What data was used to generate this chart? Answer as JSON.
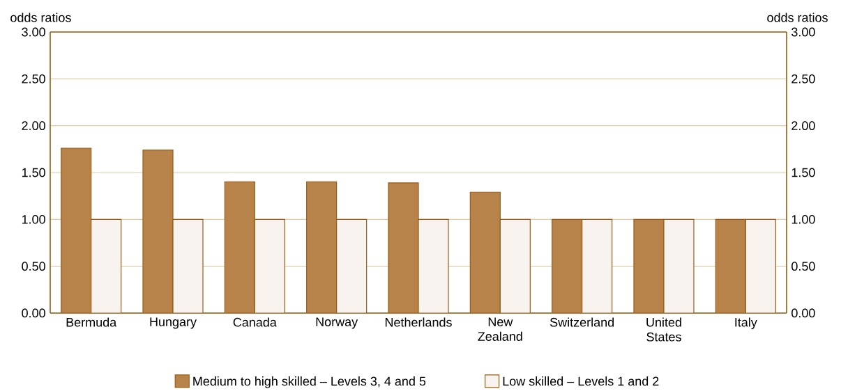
{
  "chart_data": {
    "type": "bar",
    "categories": [
      "Bermuda",
      "Hungary",
      "Canada",
      "Norway",
      "Netherlands",
      "New Zealand",
      "Switzerland",
      "United States",
      "Italy"
    ],
    "series": [
      {
        "name": "Medium to high skilled – Levels 3, 4 and 5",
        "color": "#b8834a",
        "values": [
          1.76,
          1.74,
          1.4,
          1.4,
          1.39,
          1.29,
          1.0,
          1.0,
          1.0
        ]
      },
      {
        "name": "Low skilled – Levels 1 and 2",
        "color": "#f8f3ee",
        "values": [
          1.0,
          1.0,
          1.0,
          1.0,
          1.0,
          1.0,
          1.0,
          1.0,
          1.0
        ]
      }
    ],
    "ylabel": "odds ratios",
    "y2label": "odds ratios",
    "ylim": [
      0,
      3
    ],
    "yticks": [
      {
        "value": 0,
        "label": "0.00"
      },
      {
        "value": 0.5,
        "label": "0.50"
      },
      {
        "value": 1,
        "label": "1.00"
      },
      {
        "value": 1.5,
        "label": "1.50"
      },
      {
        "value": 2,
        "label": "2.00"
      },
      {
        "value": 2.5,
        "label": "2.50"
      },
      {
        "value": 3,
        "label": "3.00"
      }
    ],
    "y2lim": [
      0,
      3
    ],
    "y2ticks": [
      {
        "value": 0,
        "label": "0.00"
      },
      {
        "value": 0.5,
        "label": "0.50"
      },
      {
        "value": 1,
        "label": "1.00"
      },
      {
        "value": 1.5,
        "label": "1.50"
      },
      {
        "value": 2,
        "label": "2.00"
      },
      {
        "value": 2.5,
        "label": "2.50"
      },
      {
        "value": 3,
        "label": "3.00"
      }
    ],
    "grid": "y",
    "legend": "bottom"
  }
}
